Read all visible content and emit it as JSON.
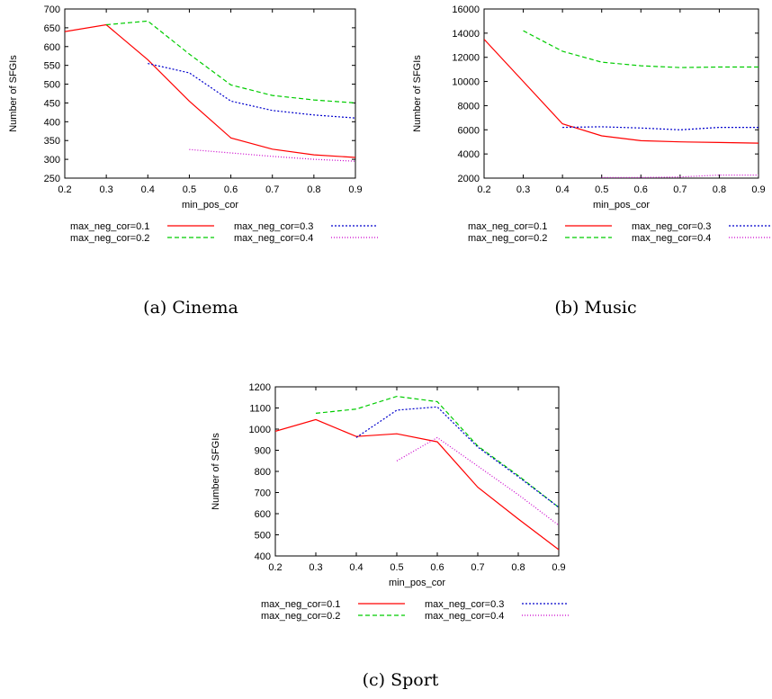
{
  "chart_data": [
    {
      "type": "line",
      "caption": "(a) Cinema",
      "xlabel": "min_pos_cor",
      "ylabel": "Number of SFGIs",
      "xlim": [
        0.2,
        0.9
      ],
      "ylim": [
        250,
        700
      ],
      "xticks": [
        "0.2",
        "0.3",
        "0.4",
        "0.5",
        "0.6",
        "0.7",
        "0.8",
        "0.9"
      ],
      "yticks": [
        "250",
        "300",
        "350",
        "400",
        "450",
        "500",
        "550",
        "600",
        "650",
        "700"
      ],
      "legend_position": "bottom",
      "series": [
        {
          "name": "max_neg_cor=0.1",
          "x": [
            0.2,
            0.3,
            0.4,
            0.5,
            0.6,
            0.7,
            0.8,
            0.9
          ],
          "y": [
            640,
            658,
            565,
            455,
            357,
            327,
            312,
            305
          ]
        },
        {
          "name": "max_neg_cor=0.2",
          "x": [
            0.3,
            0.4,
            0.5,
            0.6,
            0.7,
            0.8,
            0.9
          ],
          "y": [
            658,
            668,
            580,
            498,
            470,
            458,
            450
          ]
        },
        {
          "name": "max_neg_cor=0.3",
          "x": [
            0.4,
            0.5,
            0.6,
            0.7,
            0.8,
            0.9
          ],
          "y": [
            555,
            530,
            455,
            430,
            418,
            410
          ]
        },
        {
          "name": "max_neg_cor=0.4",
          "x": [
            0.5,
            0.6,
            0.7,
            0.8,
            0.9
          ],
          "y": [
            326,
            317,
            308,
            300,
            295
          ]
        }
      ]
    },
    {
      "type": "line",
      "caption": "(b) Music",
      "xlabel": "min_pos_cor",
      "ylabel": "Number of SFGIs",
      "xlim": [
        0.2,
        0.9
      ],
      "ylim": [
        2000,
        16000
      ],
      "xticks": [
        "0.2",
        "0.3",
        "0.4",
        "0.5",
        "0.6",
        "0.7",
        "0.8",
        "0.9"
      ],
      "yticks": [
        "2000",
        "4000",
        "6000",
        "8000",
        "10000",
        "12000",
        "14000",
        "16000"
      ],
      "legend_position": "bottom",
      "series": [
        {
          "name": "max_neg_cor=0.1",
          "x": [
            0.2,
            0.3,
            0.4,
            0.5,
            0.6,
            0.7,
            0.8,
            0.9
          ],
          "y": [
            13500,
            10000,
            6500,
            5500,
            5100,
            5000,
            4950,
            4900
          ]
        },
        {
          "name": "max_neg_cor=0.2",
          "x": [
            0.3,
            0.4,
            0.5,
            0.6,
            0.7,
            0.8,
            0.9
          ],
          "y": [
            14200,
            12500,
            11600,
            11300,
            11150,
            11200,
            11200
          ]
        },
        {
          "name": "max_neg_cor=0.3",
          "x": [
            0.4,
            0.5,
            0.6,
            0.7,
            0.8,
            0.9
          ],
          "y": [
            6200,
            6250,
            6150,
            6000,
            6200,
            6200
          ]
        },
        {
          "name": "max_neg_cor=0.4",
          "x": [
            0.5,
            0.6,
            0.7,
            0.8,
            0.9
          ],
          "y": [
            2050,
            2050,
            2100,
            2250,
            2250
          ]
        }
      ]
    },
    {
      "type": "line",
      "caption": "(c) Sport",
      "xlabel": "min_pos_cor",
      "ylabel": "Number of SFGIs",
      "xlim": [
        0.2,
        0.9
      ],
      "ylim": [
        400,
        1200
      ],
      "xticks": [
        "0.2",
        "0.3",
        "0.4",
        "0.5",
        "0.6",
        "0.7",
        "0.8",
        "0.9"
      ],
      "yticks": [
        "400",
        "500",
        "600",
        "700",
        "800",
        "900",
        "1000",
        "1100",
        "1200"
      ],
      "legend_position": "bottom",
      "series": [
        {
          "name": "max_neg_cor=0.1",
          "x": [
            0.2,
            0.3,
            0.4,
            0.5,
            0.6,
            0.7,
            0.8,
            0.9
          ],
          "y": [
            990,
            1045,
            965,
            978,
            940,
            725,
            575,
            430
          ]
        },
        {
          "name": "max_neg_cor=0.2",
          "x": [
            0.3,
            0.4,
            0.5,
            0.6,
            0.7,
            0.8,
            0.9
          ],
          "y": [
            1075,
            1095,
            1155,
            1130,
            920,
            780,
            630
          ]
        },
        {
          "name": "max_neg_cor=0.3",
          "x": [
            0.4,
            0.5,
            0.6,
            0.7,
            0.8,
            0.9
          ],
          "y": [
            960,
            1090,
            1105,
            915,
            775,
            630
          ]
        },
        {
          "name": "max_neg_cor=0.4",
          "x": [
            0.5,
            0.6,
            0.7,
            0.8,
            0.9
          ],
          "y": [
            850,
            960,
            825,
            690,
            545
          ]
        }
      ]
    }
  ],
  "series_styles": [
    {
      "color": "#ff0000",
      "dash": ""
    },
    {
      "color": "#00cc00",
      "dash": "5,3"
    },
    {
      "color": "#0000cc",
      "dash": "2,2"
    },
    {
      "color": "#cc00cc",
      "dash": "1,2"
    }
  ]
}
